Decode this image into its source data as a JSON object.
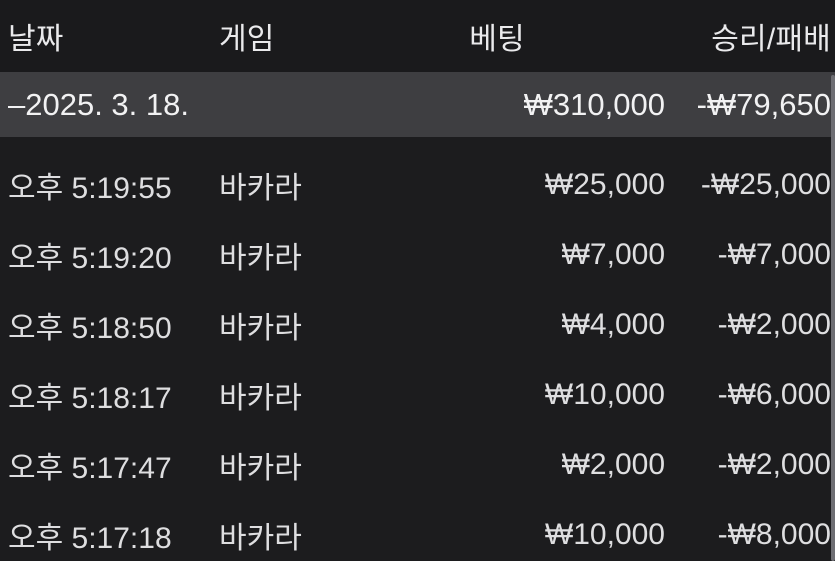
{
  "table": {
    "headers": {
      "date": "날짜",
      "game": "게임",
      "bet": "베팅",
      "winloss": "승리/패배"
    },
    "summary": {
      "date": "–2025. 3. 18.",
      "bet": "₩310,000",
      "result": "-₩79,650"
    },
    "rows": [
      {
        "time": "오후 5:19:55",
        "game": "바카라",
        "bet": "₩25,000",
        "result": "-₩25,000"
      },
      {
        "time": "오후 5:19:20",
        "game": "바카라",
        "bet": "₩7,000",
        "result": "-₩7,000"
      },
      {
        "time": "오후 5:18:50",
        "game": "바카라",
        "bet": "₩4,000",
        "result": "-₩2,000"
      },
      {
        "time": "오후 5:18:17",
        "game": "바카라",
        "bet": "₩10,000",
        "result": "-₩6,000"
      },
      {
        "time": "오후 5:17:47",
        "game": "바카라",
        "bet": "₩2,000",
        "result": "-₩2,000"
      },
      {
        "time": "오후 5:17:18",
        "game": "바카라",
        "bet": "₩10,000",
        "result": "-₩8,000"
      }
    ],
    "colors": {
      "background": "#1c1c1e",
      "header_background": "#1a1a1c",
      "summary_background": "#3e3e41",
      "row_text": "#dedee0",
      "header_text": "#eaeaec",
      "scrollbar": "#6e6e73"
    }
  }
}
